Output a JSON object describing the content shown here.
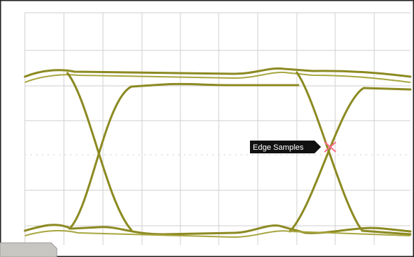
{
  "annotation": {
    "label": "Edge Samples"
  }
}
